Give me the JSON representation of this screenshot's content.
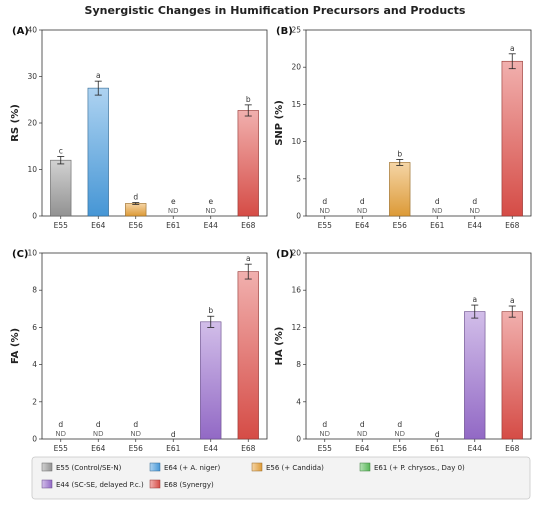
{
  "chart_data": {
    "title": "Synergistic Changes in Humification Precursors and Products",
    "categories": [
      "E55",
      "E64",
      "E56",
      "E61",
      "E44",
      "E68"
    ],
    "colors": {
      "E55": "#9a9a9a",
      "E64": "#4a9ee0",
      "E56": "#e8a23a",
      "E61": "#5bbf5b",
      "E44": "#9a6fcf",
      "E68": "#e0504a"
    },
    "legend": [
      {
        "key": "E55",
        "label": "E55 (Control/SE-N)"
      },
      {
        "key": "E64",
        "label": "E64 (+ A. niger)"
      },
      {
        "key": "E56",
        "label": "E56 (+ Candida)"
      },
      {
        "key": "E61",
        "label": "E61 (+ P. chrysos., Day 0)"
      },
      {
        "key": "E44",
        "label": "E44 (SC-SE, delayed P.c.)"
      },
      {
        "key": "E68",
        "label": "E68 (Synergy)"
      }
    ],
    "panels": [
      {
        "id": "A",
        "panel_label": "(A)",
        "type": "bar",
        "ylabel": "RS (%)",
        "ylim": [
          0,
          40
        ],
        "yticks": [
          0,
          10,
          20,
          30,
          40
        ],
        "values": [
          12,
          27.5,
          2.7,
          0,
          0,
          22.7
        ],
        "errors": [
          0.8,
          1.5,
          0.2,
          0,
          0,
          1.2
        ],
        "letters": [
          "c",
          "a",
          "d",
          "e",
          "e",
          "b"
        ],
        "nd": [
          false,
          false,
          false,
          true,
          true,
          false
        ]
      },
      {
        "id": "B",
        "panel_label": "(B)",
        "type": "bar",
        "ylabel": "SNP (%)",
        "ylim": [
          0,
          25
        ],
        "yticks": [
          0,
          5,
          10,
          15,
          20,
          25
        ],
        "values": [
          0,
          0,
          7.2,
          0,
          0,
          20.8
        ],
        "errors": [
          0,
          0,
          0.4,
          0,
          0,
          1.0
        ],
        "letters": [
          "d",
          "d",
          "b",
          "d",
          "d",
          "a"
        ],
        "nd": [
          true,
          true,
          false,
          true,
          true,
          false
        ]
      },
      {
        "id": "C",
        "panel_label": "(C)",
        "type": "bar",
        "ylabel": "FA (%)",
        "ylim": [
          0,
          10
        ],
        "yticks": [
          0,
          2,
          4,
          6,
          8,
          10
        ],
        "values": [
          0,
          0,
          0,
          0,
          6.3,
          9.0
        ],
        "errors": [
          0,
          0,
          0,
          0,
          0.3,
          0.4
        ],
        "letters": [
          "d",
          "d",
          "d",
          "d",
          "b",
          "a"
        ],
        "nd": [
          true,
          true,
          true,
          false,
          false,
          false
        ]
      },
      {
        "id": "D",
        "panel_label": "(D)",
        "type": "bar",
        "ylabel": "HA (%)",
        "ylim": [
          0,
          20
        ],
        "yticks": [
          0,
          4,
          8,
          12,
          16,
          20
        ],
        "values": [
          0,
          0,
          0,
          0,
          13.7,
          13.7
        ],
        "errors": [
          0,
          0,
          0,
          0,
          0.7,
          0.6
        ],
        "letters": [
          "d",
          "d",
          "d",
          "d",
          "a",
          "a"
        ],
        "nd": [
          true,
          true,
          true,
          false,
          false,
          false
        ]
      }
    ],
    "nd_label": "ND"
  }
}
